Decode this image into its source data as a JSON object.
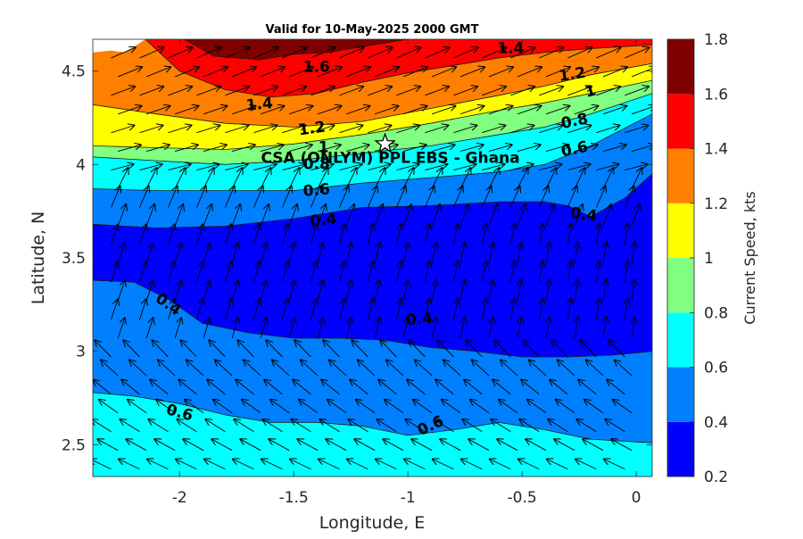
{
  "chart_data": {
    "type": "contour",
    "title": "Valid for 10-May-2025 2000 GMT",
    "xlabel": "Longitude, E",
    "ylabel": "Latitude, N",
    "colorbar_label": "Current Speed, kts",
    "xlim": [
      -2.38,
      0.07
    ],
    "ylim": [
      2.33,
      4.67
    ],
    "xticks": [
      -2,
      -1.5,
      -1,
      -0.5,
      0
    ],
    "xtick_labels": [
      "-2",
      "-1.5",
      "-1",
      "-0.5",
      "0"
    ],
    "yticks": [
      2.5,
      3,
      3.5,
      4,
      4.5
    ],
    "ytick_labels": [
      "2.5",
      "3",
      "3.5",
      "4",
      "4.5"
    ],
    "colorbar_ticks": [
      0.2,
      0.4,
      0.6,
      0.8,
      1,
      1.2,
      1.4,
      1.6,
      1.8
    ],
    "colorbar_tick_labels": [
      "0.2",
      "0.4",
      "0.6",
      "0.8",
      "1",
      "1.2",
      "1.4",
      "1.6",
      "1.8"
    ],
    "levels": [
      {
        "range": [
          0.2,
          0.4
        ],
        "color": "#0000ff"
      },
      {
        "range": [
          0.4,
          0.6
        ],
        "color": "#0080ff"
      },
      {
        "range": [
          0.6,
          0.8
        ],
        "color": "#00ffff"
      },
      {
        "range": [
          0.8,
          1.0
        ],
        "color": "#80ff80"
      },
      {
        "range": [
          1.0,
          1.2
        ],
        "color": "#ffff00"
      },
      {
        "range": [
          1.2,
          1.4
        ],
        "color": "#ff8000"
      },
      {
        "range": [
          1.4,
          1.6
        ],
        "color": "#ff0000"
      },
      {
        "range": [
          1.6,
          1.8
        ],
        "color": "#800000"
      }
    ],
    "contours": [
      {
        "level": 0.6,
        "points": [
          [
            -2.38,
            2.78
          ],
          [
            -2.2,
            2.76
          ],
          [
            -2.0,
            2.72
          ],
          [
            -1.8,
            2.66
          ],
          [
            -1.6,
            2.62
          ],
          [
            -1.4,
            2.62
          ],
          [
            -1.2,
            2.6
          ],
          [
            -1.0,
            2.55
          ],
          [
            -0.8,
            2.58
          ],
          [
            -0.6,
            2.62
          ],
          [
            -0.4,
            2.58
          ],
          [
            -0.2,
            2.53
          ],
          [
            0.07,
            2.51
          ]
        ]
      },
      {
        "level": 0.4,
        "points": [
          [
            -2.38,
            3.38
          ],
          [
            -2.2,
            3.37
          ],
          [
            -2.05,
            3.28
          ],
          [
            -1.9,
            3.15
          ],
          [
            -1.7,
            3.1
          ],
          [
            -1.5,
            3.07
          ],
          [
            -1.3,
            3.07
          ],
          [
            -1.1,
            3.06
          ],
          [
            -0.9,
            3.02
          ],
          [
            -0.7,
            3.0
          ],
          [
            -0.5,
            2.97
          ],
          [
            -0.3,
            2.97
          ],
          [
            -0.1,
            2.98
          ],
          [
            0.07,
            3.0
          ]
        ]
      },
      {
        "level": 0.4,
        "points": [
          [
            -2.38,
            3.68
          ],
          [
            -2.1,
            3.66
          ],
          [
            -1.8,
            3.67
          ],
          [
            -1.5,
            3.71
          ],
          [
            -1.2,
            3.77
          ],
          [
            -0.9,
            3.78
          ],
          [
            -0.6,
            3.8
          ],
          [
            -0.4,
            3.8
          ],
          [
            -0.3,
            3.78
          ],
          [
            -0.2,
            3.72
          ],
          [
            -0.05,
            3.82
          ],
          [
            0.07,
            3.95
          ]
        ]
      },
      {
        "level": 0.6,
        "points": [
          [
            -2.38,
            3.87
          ],
          [
            -2.1,
            3.86
          ],
          [
            -1.8,
            3.86
          ],
          [
            -1.5,
            3.86
          ],
          [
            -1.2,
            3.9
          ],
          [
            -0.9,
            3.93
          ],
          [
            -0.6,
            3.96
          ],
          [
            -0.4,
            4.0
          ],
          [
            -0.2,
            4.1
          ],
          [
            0.07,
            4.27
          ]
        ]
      },
      {
        "level": 0.8,
        "points": [
          [
            -2.38,
            4.04
          ],
          [
            -2.1,
            4.02
          ],
          [
            -1.8,
            4.0
          ],
          [
            -1.5,
            4.02
          ],
          [
            -1.2,
            4.06
          ],
          [
            -0.9,
            4.1
          ],
          [
            -0.6,
            4.16
          ],
          [
            -0.4,
            4.2
          ],
          [
            -0.2,
            4.27
          ],
          [
            0.07,
            4.38
          ]
        ]
      },
      {
        "level": 1.0,
        "points": [
          [
            -2.38,
            4.1
          ],
          [
            -2.1,
            4.09
          ],
          [
            -1.8,
            4.08
          ],
          [
            -1.5,
            4.11
          ],
          [
            -1.2,
            4.16
          ],
          [
            -0.9,
            4.22
          ],
          [
            -0.6,
            4.29
          ],
          [
            -0.4,
            4.33
          ],
          [
            -0.2,
            4.38
          ],
          [
            0.07,
            4.45
          ]
        ]
      },
      {
        "level": 1.2,
        "points": [
          [
            -2.38,
            4.32
          ],
          [
            -2.1,
            4.27
          ],
          [
            -1.8,
            4.22
          ],
          [
            -1.5,
            4.2
          ],
          [
            -1.2,
            4.23
          ],
          [
            -0.9,
            4.3
          ],
          [
            -0.6,
            4.37
          ],
          [
            -0.4,
            4.42
          ],
          [
            -0.2,
            4.48
          ],
          [
            0.07,
            4.54
          ]
        ]
      },
      {
        "level": 1.4,
        "points": [
          [
            -2.15,
            4.67
          ],
          [
            -2.0,
            4.5
          ],
          [
            -1.8,
            4.4
          ],
          [
            -1.6,
            4.36
          ],
          [
            -1.4,
            4.38
          ],
          [
            -1.2,
            4.44
          ],
          [
            -1.0,
            4.49
          ],
          [
            -0.8,
            4.53
          ],
          [
            -0.6,
            4.57
          ],
          [
            -0.4,
            4.6
          ],
          [
            -0.2,
            4.62
          ],
          [
            0.07,
            4.64
          ]
        ]
      },
      {
        "level": 1.6,
        "points": [
          [
            -1.98,
            4.67
          ],
          [
            -1.85,
            4.58
          ],
          [
            -1.65,
            4.56
          ],
          [
            -1.5,
            4.59
          ],
          [
            -1.35,
            4.6
          ],
          [
            -1.2,
            4.63
          ],
          [
            -1.0,
            4.67
          ]
        ]
      }
    ],
    "contour_labels": [
      {
        "text": "1.6",
        "x": -1.4,
        "y": 4.52,
        "angle": 0
      },
      {
        "text": "1.4",
        "x": -0.55,
        "y": 4.62,
        "angle": 0
      },
      {
        "text": "1.4",
        "x": -1.65,
        "y": 4.32,
        "angle": -5
      },
      {
        "text": "1.2",
        "x": -0.28,
        "y": 4.48,
        "angle": -8
      },
      {
        "text": "1.2",
        "x": -1.42,
        "y": 4.19,
        "angle": -8
      },
      {
        "text": "1",
        "x": -0.2,
        "y": 4.39,
        "angle": -15
      },
      {
        "text": "1",
        "x": -1.37,
        "y": 4.09,
        "angle": 0
      },
      {
        "text": "0.8",
        "x": -0.27,
        "y": 4.23,
        "angle": -12
      },
      {
        "text": "0.8",
        "x": -1.4,
        "y": 4.0,
        "angle": 0
      },
      {
        "text": "0.6",
        "x": -0.27,
        "y": 4.08,
        "angle": -12
      },
      {
        "text": "0.6",
        "x": -1.4,
        "y": 3.86,
        "angle": -5
      },
      {
        "text": "0.4",
        "x": -0.23,
        "y": 3.73,
        "angle": 8
      },
      {
        "text": "0.4",
        "x": -1.37,
        "y": 3.7,
        "angle": -5
      },
      {
        "text": "0.4",
        "x": -2.05,
        "y": 3.25,
        "angle": 35
      },
      {
        "text": "0.4",
        "x": -0.95,
        "y": 3.17,
        "angle": -5
      },
      {
        "text": "0.6",
        "x": -2.0,
        "y": 2.67,
        "angle": 15
      },
      {
        "text": "0.6",
        "x": -0.9,
        "y": 2.6,
        "angle": -25
      }
    ],
    "annotation": {
      "text": "CSA (ONLYM) PPL EBS  - Ghana",
      "marker": "star",
      "x": -1.1,
      "y": 4.11
    },
    "vectors": {
      "x_spacing": 0.125,
      "y_spacing": 0.1,
      "x_start": -2.3,
      "x_end": 0.0,
      "y_start": 2.37,
      "y_end": 4.6
    }
  }
}
